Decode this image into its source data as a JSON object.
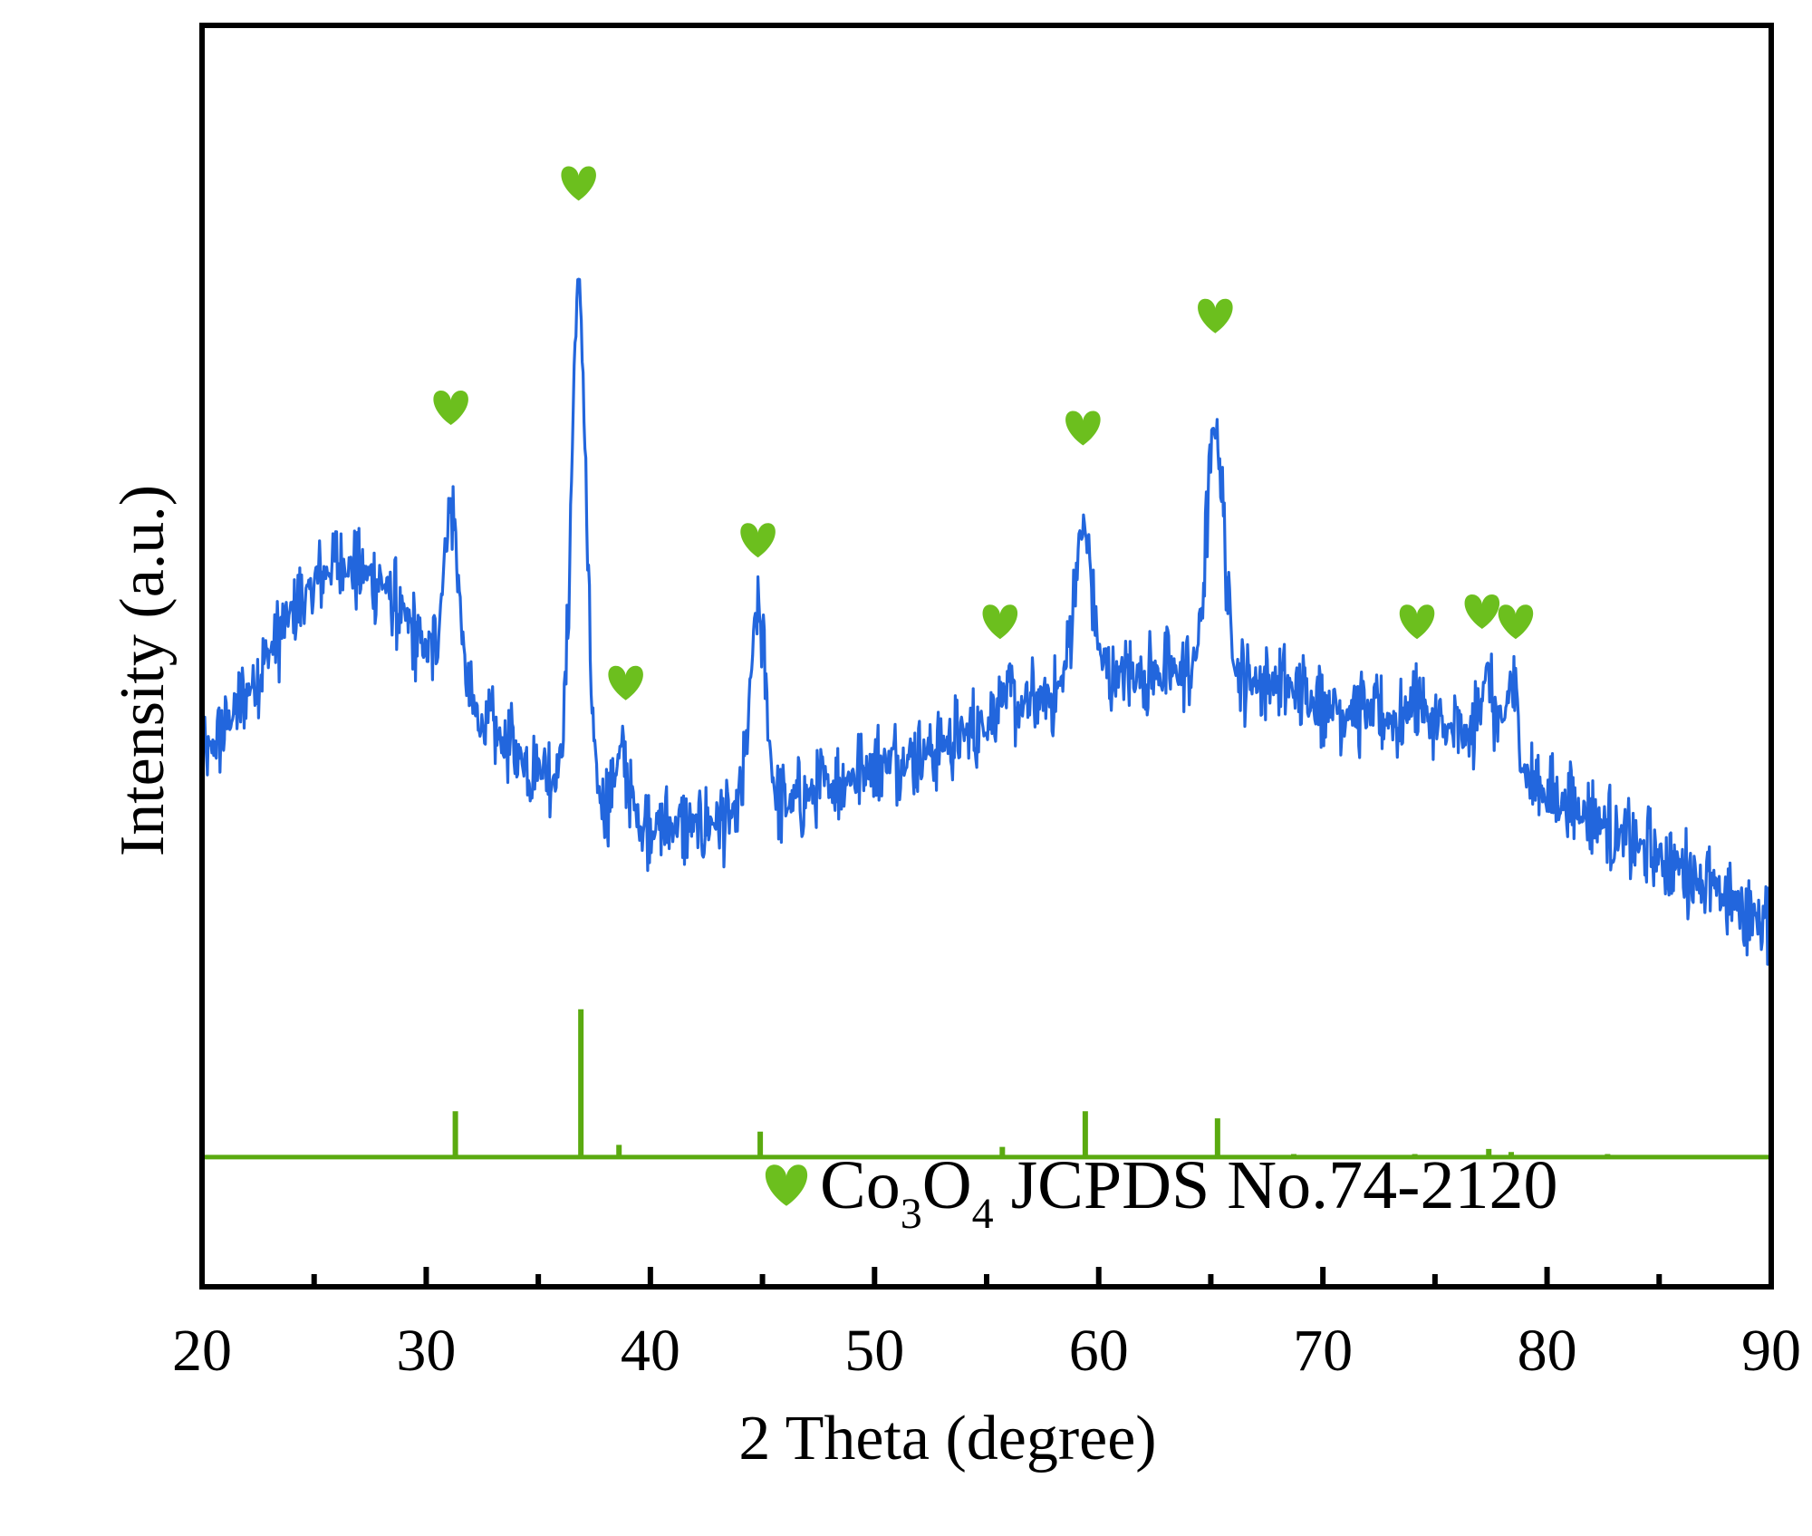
{
  "chart_data": {
    "type": "line",
    "title": "",
    "xlabel": "2 Theta (degree)",
    "ylabel": "Intensity (a.u.)",
    "xlim": [
      20,
      90
    ],
    "x_ticks": [
      "20",
      "30",
      "40",
      "50",
      "60",
      "70",
      "80",
      "90"
    ],
    "y_ticks": [],
    "grid": false,
    "legend": {
      "placement": "bottom-right",
      "entries": [
        {
          "marker": "heart-icon",
          "formula_parts": [
            {
              "text": "Co",
              "sub": false
            },
            {
              "text": "3",
              "sub": true
            },
            {
              "text": "O",
              "sub": false
            },
            {
              "text": "4",
              "sub": true
            },
            {
              "text": " JCPDS No.74-2120",
              "sub": false
            }
          ]
        }
      ]
    },
    "colors": {
      "sample_line": "#2266dd",
      "reference_line": "#5aaa10",
      "marker": "#6cbf1e"
    },
    "series": [
      {
        "role": "sample",
        "values_relative": true,
        "baseline": [
          [
            20,
            53
          ],
          [
            22,
            60
          ],
          [
            24,
            68
          ],
          [
            26,
            73
          ],
          [
            28,
            71
          ],
          [
            30,
            64
          ],
          [
            32,
            58
          ],
          [
            34,
            54
          ],
          [
            36,
            52
          ],
          [
            38,
            49
          ],
          [
            40,
            47
          ],
          [
            42,
            47
          ],
          [
            44,
            48
          ],
          [
            46,
            49
          ],
          [
            48,
            51
          ],
          [
            50,
            53
          ],
          [
            52,
            54
          ],
          [
            54,
            56
          ],
          [
            56,
            58
          ],
          [
            58,
            60
          ],
          [
            60,
            61.5
          ],
          [
            62,
            62
          ],
          [
            64,
            62
          ],
          [
            66,
            61.5
          ],
          [
            68,
            61
          ],
          [
            70,
            59
          ],
          [
            72,
            58
          ],
          [
            74,
            57
          ],
          [
            76,
            56
          ],
          [
            78,
            54
          ],
          [
            80,
            50
          ],
          [
            82,
            48
          ],
          [
            84,
            45
          ],
          [
            86,
            43
          ],
          [
            88,
            40
          ],
          [
            90,
            37
          ]
        ],
        "peaks": [
          {
            "x": 31.1,
            "height": 78,
            "width": 0.35
          },
          {
            "x": 36.8,
            "height": 100,
            "width": 0.32
          },
          {
            "x": 38.7,
            "height": 54,
            "width": 0.3
          },
          {
            "x": 44.8,
            "height": 68,
            "width": 0.35
          },
          {
            "x": 55.7,
            "height": 60,
            "width": 0.3
          },
          {
            "x": 59.3,
            "height": 76,
            "width": 0.4
          },
          {
            "x": 65.2,
            "height": 86,
            "width": 0.38
          },
          {
            "x": 74.2,
            "height": 60,
            "width": 0.3
          },
          {
            "x": 77.3,
            "height": 62,
            "width": 0.3
          },
          {
            "x": 78.4,
            "height": 61,
            "width": 0.25
          }
        ],
        "noise_amplitude": 3
      },
      {
        "role": "reference",
        "values_relative": true,
        "baseline_level": 14.5,
        "sticks": [
          {
            "x": 31.3,
            "height": 4.5
          },
          {
            "x": 36.9,
            "height": 14.5
          },
          {
            "x": 38.6,
            "height": 1.2
          },
          {
            "x": 44.9,
            "height": 2.5
          },
          {
            "x": 55.7,
            "height": 1.0
          },
          {
            "x": 59.4,
            "height": 4.5
          },
          {
            "x": 65.3,
            "height": 3.8
          },
          {
            "x": 68.7,
            "height": 0.3
          },
          {
            "x": 74.1,
            "height": 0.3
          },
          {
            "x": 77.4,
            "height": 0.8
          },
          {
            "x": 78.4,
            "height": 0.5
          },
          {
            "x": 82.7,
            "height": 0.3
          }
        ]
      }
    ],
    "peak_markers": [
      {
        "x": 31.1,
        "label_level": 88
      },
      {
        "x": 36.8,
        "label_level": 110
      },
      {
        "x": 38.9,
        "label_level": 61
      },
      {
        "x": 44.8,
        "label_level": 75
      },
      {
        "x": 55.6,
        "label_level": 67
      },
      {
        "x": 59.3,
        "label_level": 86
      },
      {
        "x": 65.2,
        "label_level": 97
      },
      {
        "x": 74.2,
        "label_level": 67
      },
      {
        "x": 77.1,
        "label_level": 68
      },
      {
        "x": 78.6,
        "label_level": 67
      }
    ],
    "ylim_relative": [
      0,
      120
    ]
  }
}
